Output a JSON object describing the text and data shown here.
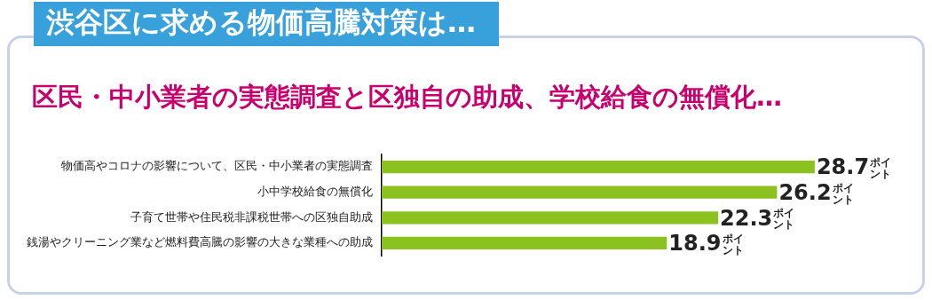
{
  "chart_data": {
    "type": "bar",
    "orientation": "horizontal",
    "title": "渋谷区に求める物価高騰対策は…",
    "subtitle": "区民・中小業者の実態調査と区独自の助成、学校給食の無償化…",
    "categories": [
      "物価高やコロナの影響について、区民・中小業者の実態調査",
      "小中学校給食の無償化",
      "子育て世帯や住民税非課税世帯への区独自助成",
      "銭湯やクリーニング業など燃料費高騰の影響の大きな業種への助成"
    ],
    "values": [
      28.7,
      26.2,
      22.3,
      18.9
    ],
    "color": "#8cc220",
    "value_labels": [
      "28.7ポイント",
      "26.2ポイント",
      "22.3ポイント",
      "18.9ポイント"
    ],
    "legend": false
  }
}
